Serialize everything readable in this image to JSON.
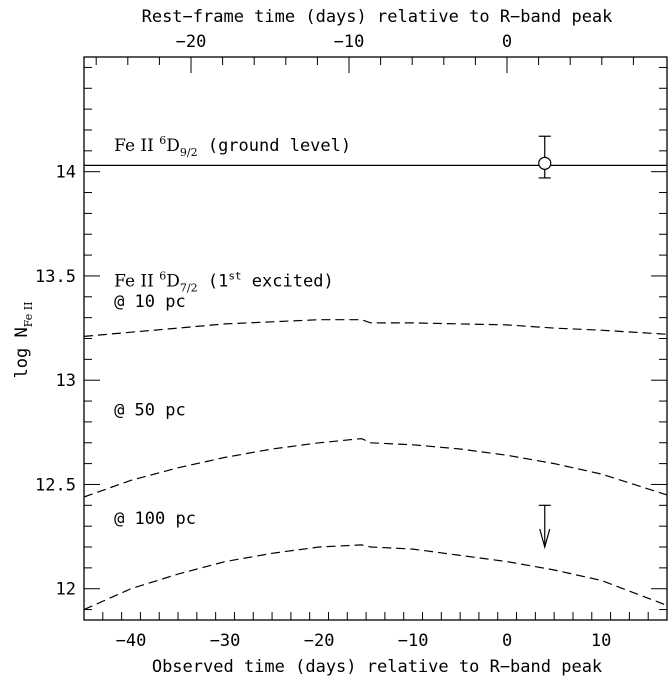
{
  "chart_data": {
    "type": "line",
    "xlabel": "Observed time (days) relative to R−band peak",
    "xlabel_top": "Rest−frame time (days) relative to R−band peak",
    "ylabel": "log N",
    "ylabel_sub": "Fe II",
    "xlim": [
      -45,
      17
    ],
    "ylim": [
      11.85,
      14.55
    ],
    "x_ticks": [
      -40,
      -30,
      -20,
      -10,
      0,
      10
    ],
    "x_tick_labels": [
      "−40",
      "−30",
      "−20",
      "−10",
      "0",
      "10"
    ],
    "top_ticks": [
      -20,
      -10,
      0
    ],
    "top_tick_labels": [
      "−20",
      "−10",
      "0"
    ],
    "y_ticks": [
      12,
      12.5,
      13,
      13.5,
      14
    ],
    "y_tick_labels": [
      "12",
      "12.5",
      "13",
      "13.5",
      "14"
    ],
    "grid": false,
    "series": [
      {
        "style": "solid",
        "x": [
          -45,
          -35,
          -25,
          -15.5,
          -15,
          -5,
          5,
          17
        ],
        "values": [
          14.03,
          14.03,
          14.03,
          14.03,
          14.03,
          14.03,
          14.03,
          14.03
        ]
      },
      {
        "style": "dashed",
        "x": [
          -45,
          -40,
          -35,
          -30,
          -25,
          -20,
          -15.5,
          -14.5,
          -10,
          -5,
          0,
          5,
          10,
          17
        ],
        "values": [
          13.21,
          13.23,
          13.25,
          13.27,
          13.28,
          13.29,
          13.29,
          13.275,
          13.275,
          13.27,
          13.265,
          13.25,
          13.24,
          13.22
        ]
      },
      {
        "style": "dashed",
        "x": [
          -45,
          -40,
          -35,
          -30,
          -25,
          -20,
          -15.5,
          -14.5,
          -10,
          -5,
          0,
          5,
          10,
          17
        ],
        "values": [
          12.44,
          12.52,
          12.58,
          12.63,
          12.67,
          12.7,
          12.72,
          12.7,
          12.69,
          12.67,
          12.64,
          12.6,
          12.55,
          12.45
        ]
      },
      {
        "style": "dashed",
        "x": [
          -45,
          -40,
          -35,
          -30,
          -25,
          -20,
          -15.5,
          -14.5,
          -10,
          -5,
          0,
          5,
          10,
          17
        ],
        "values": [
          11.9,
          12.0,
          12.07,
          12.13,
          12.17,
          12.2,
          12.21,
          12.2,
          12.19,
          12.16,
          12.13,
          12.09,
          12.04,
          11.92
        ]
      }
    ],
    "measurements": [
      {
        "kind": "point-with-error",
        "x": 4.0,
        "y": 14.04,
        "yerr_low": 0.07,
        "yerr_high": 0.13
      },
      {
        "kind": "upper-limit",
        "x": 4.0,
        "y": 12.4,
        "arrow_to": 12.2
      }
    ],
    "annotations": [
      {
        "id": "ground",
        "prefix": "Fe II ",
        "sup": "6",
        "main": "D",
        "sub": "9/2",
        "suffix": " (ground level)",
        "x": -41.8,
        "y": 14.1
      },
      {
        "id": "excited",
        "prefix": "Fe II ",
        "sup": "6",
        "main": "D",
        "sub": "7/2",
        "mid": " (1",
        "sup2": "st",
        "suffix": " excited)",
        "x": -41.8,
        "y": 13.45
      },
      {
        "id": "at10",
        "text": "@ 10 pc",
        "x": -41.8,
        "y": 13.35
      },
      {
        "id": "at50",
        "text": "@ 50 pc",
        "x": -41.8,
        "y": 12.83
      },
      {
        "id": "at100",
        "text": "@ 100 pc",
        "x": -41.8,
        "y": 12.31
      }
    ]
  }
}
